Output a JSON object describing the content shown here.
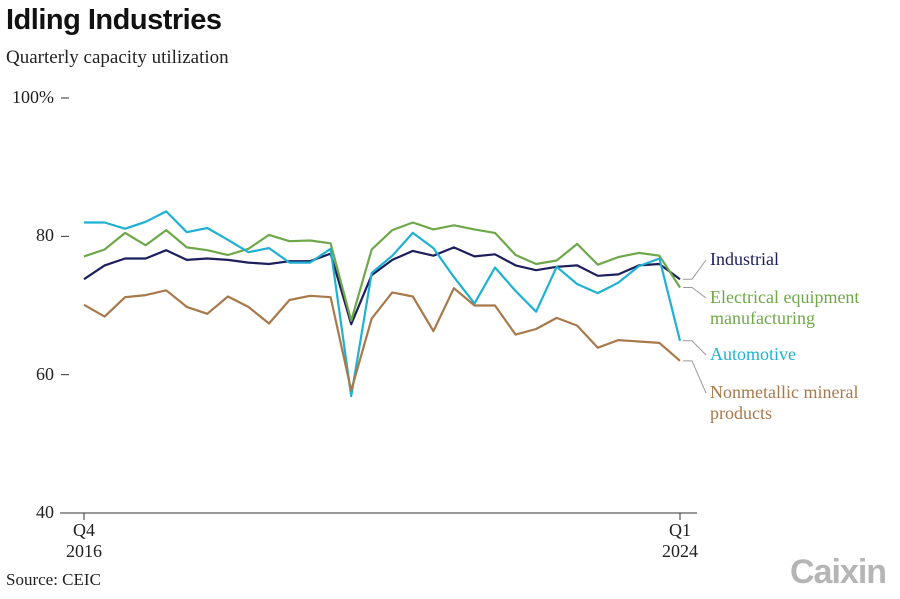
{
  "chart_data": {
    "type": "line",
    "title": "Idling Industries",
    "subtitle": "Quarterly capacity utilization",
    "source": "Source: CEIC",
    "logo": "Caixin",
    "categories": [
      "Q4\n2016",
      null,
      null,
      null,
      null,
      null,
      null,
      null,
      null,
      null,
      null,
      null,
      null,
      null,
      null,
      null,
      null,
      null,
      null,
      null,
      null,
      null,
      null,
      null,
      null,
      null,
      null,
      null,
      null,
      "Q1\n2024"
    ],
    "ylim": [
      40,
      100
    ],
    "yticks": [
      40,
      60,
      80,
      {
        "value": 100,
        "label": "100%"
      }
    ],
    "series": [
      {
        "name": "Industrial",
        "color": "#1c1f5c",
        "values": [
          73.8,
          75.8,
          76.8,
          76.8,
          78.0,
          76.6,
          76.8,
          76.6,
          76.2,
          76.0,
          76.4,
          76.4,
          77.5,
          67.3,
          74.4,
          76.6,
          77.9,
          77.2,
          78.4,
          77.1,
          77.4,
          75.8,
          75.1,
          75.6,
          75.8,
          74.3,
          74.5,
          75.8,
          76.0,
          73.8
        ]
      },
      {
        "name": "Electrical equipment\nmanufacturing",
        "color": "#6ea84a",
        "values": [
          77.1,
          78.1,
          80.5,
          78.7,
          80.9,
          78.4,
          78.0,
          77.3,
          78.2,
          80.2,
          79.3,
          79.4,
          79.0,
          67.8,
          78.1,
          80.9,
          82.0,
          81.0,
          81.6,
          81.0,
          80.5,
          77.3,
          76.0,
          76.5,
          78.9,
          75.9,
          77.0,
          77.6,
          77.2,
          72.6
        ]
      },
      {
        "name": "Automotive",
        "color": "#1fb1d1",
        "values": [
          82.0,
          82.0,
          81.1,
          82.1,
          83.6,
          80.6,
          81.2,
          79.5,
          77.7,
          78.3,
          76.2,
          76.2,
          78.2,
          56.9,
          74.7,
          77.2,
          80.5,
          78.3,
          74.1,
          70.3,
          75.5,
          72.1,
          69.1,
          75.6,
          73.1,
          71.8,
          73.3,
          75.7,
          76.8,
          64.9
        ]
      },
      {
        "name": "Nonmetallic mineral\nproducts",
        "color": "#a8794b",
        "values": [
          70.1,
          68.4,
          71.2,
          71.5,
          72.2,
          69.8,
          68.8,
          71.3,
          69.8,
          67.4,
          70.8,
          71.4,
          71.2,
          57.7,
          68.1,
          71.9,
          71.3,
          66.3,
          72.5,
          70.0,
          70.0,
          65.8,
          66.6,
          68.2,
          67.1,
          63.9,
          65.0,
          64.8,
          64.6,
          62.0
        ]
      }
    ]
  }
}
